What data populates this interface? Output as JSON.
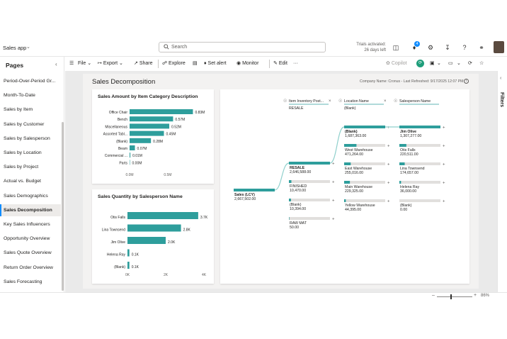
{
  "app": {
    "name": "Sales app"
  },
  "search": {
    "placeholder": "Search"
  },
  "trial": {
    "line1": "Trials activated:",
    "line2": "26 days left"
  },
  "notifications": {
    "count": "4"
  },
  "sidebar": {
    "title": "Pages",
    "items": [
      {
        "label": "Period-Over-Period Gr..."
      },
      {
        "label": "Month-To-Date"
      },
      {
        "label": "Sales by Item"
      },
      {
        "label": "Sales by Customer"
      },
      {
        "label": "Sales by Salesperson"
      },
      {
        "label": "Sales by Location"
      },
      {
        "label": "Sales by Project"
      },
      {
        "label": "Actual vs. Budget"
      },
      {
        "label": "Sales Demographics"
      },
      {
        "label": "Sales Decomposition"
      },
      {
        "label": "Key Sales Influencers"
      },
      {
        "label": "Opportunity Overview"
      },
      {
        "label": "Sales Quote Overview"
      },
      {
        "label": "Return Order Overview"
      },
      {
        "label": "Sales Forecasting"
      }
    ],
    "active_index": 9
  },
  "toolbar": {
    "file": "File",
    "export": "Export",
    "share": "Share",
    "explore": "Explore",
    "set_alert": "Set alert",
    "monitor": "Monitor",
    "edit": "Edit",
    "more": "···",
    "copilot": "Copilot"
  },
  "report": {
    "title": "Sales Decomposition",
    "meta": "Company Name: Cronus  -  Last Refreshed: 9/17/2025 12:07 PM"
  },
  "filters": {
    "label": "Filters"
  },
  "zoom": {
    "value": "86%"
  },
  "chart_data": [
    {
      "type": "bar",
      "orientation": "horizontal",
      "title": "Sales Amount by Item Category Description",
      "categories": [
        "Office Chair",
        "Bench",
        "Miscellaneous",
        "Assorted Tabl...",
        "(Blank)",
        "Beam",
        "Commercial ...",
        "Parts"
      ],
      "values": [
        0.83,
        0.57,
        0.52,
        0.45,
        0.28,
        0.07,
        0.01,
        0.0
      ],
      "value_labels": [
        "0.83M",
        "0.57M",
        "0.52M",
        "0.45M",
        "0.28M",
        "0.07M",
        "0.01M",
        "0.00M"
      ],
      "xticks": [
        "0.0M",
        "0.5M"
      ],
      "xlim": [
        0,
        0.9
      ],
      "color": "#2e9e9c"
    },
    {
      "type": "bar",
      "orientation": "horizontal",
      "title": "Sales Quantity by Salesperson Name",
      "categories": [
        "Otis Falls",
        "Lina Townsend",
        "Jim Olive",
        "Helena Ray",
        "(Blank)"
      ],
      "values": [
        3.7,
        2.8,
        2.0,
        0.1,
        0.1
      ],
      "value_labels": [
        "3.7K",
        "2.8K",
        "2.0K",
        "0.1K",
        "0.1K"
      ],
      "xticks": [
        "0K",
        "2K",
        "4K"
      ],
      "xlim": [
        0,
        4
      ],
      "color": "#2e9e9c"
    }
  ],
  "decomp": {
    "root": {
      "label": "Sales (LCY)",
      "value": "2,667,502.00"
    },
    "headers": [
      {
        "title": "Item Inventory Post...",
        "sub": "RESALE"
      },
      {
        "title": "Location Name",
        "sub": "(Blank)"
      },
      {
        "title": "Salesperson Name",
        "sub": ""
      }
    ],
    "col1": [
      {
        "label": "RESALE",
        "value": "2,646,588.00",
        "fill": 1.0,
        "selected": true
      },
      {
        "label": "FINISHED",
        "value": "10,470.00",
        "fill": 0.06,
        "selected": false
      },
      {
        "label": "(Blank)",
        "value": "10,394.00",
        "fill": 0.05,
        "selected": false
      },
      {
        "label": "RAW MAT",
        "value": "50.00",
        "fill": 0.01,
        "selected": false
      }
    ],
    "col2": [
      {
        "label": "(Blank)",
        "value": "1,687,363.00",
        "fill": 1.0,
        "selected": true
      },
      {
        "label": "West Warehouse",
        "value": "471,264.00",
        "fill": 0.3,
        "selected": false
      },
      {
        "label": "East Warehouse",
        "value": "255,016.00",
        "fill": 0.16,
        "selected": false
      },
      {
        "label": "Main Warehouse",
        "value": "229,325.00",
        "fill": 0.14,
        "selected": false
      },
      {
        "label": "Yellow Warehouse",
        "value": "44,395.00",
        "fill": 0.04,
        "selected": false
      }
    ],
    "col3": [
      {
        "label": "Jim Olive",
        "value": "1,307,277.00",
        "fill": 1.0,
        "selected": true
      },
      {
        "label": "Otis Falls",
        "value": "220,511.00",
        "fill": 0.17,
        "selected": false
      },
      {
        "label": "Lina Townsend",
        "value": "174,657.00",
        "fill": 0.13,
        "selected": false
      },
      {
        "label": "Helena Ray",
        "value": "36,000.00",
        "fill": 0.04,
        "selected": false
      },
      {
        "label": "(Blank)",
        "value": "0.00",
        "fill": 0.0,
        "selected": false
      }
    ]
  }
}
